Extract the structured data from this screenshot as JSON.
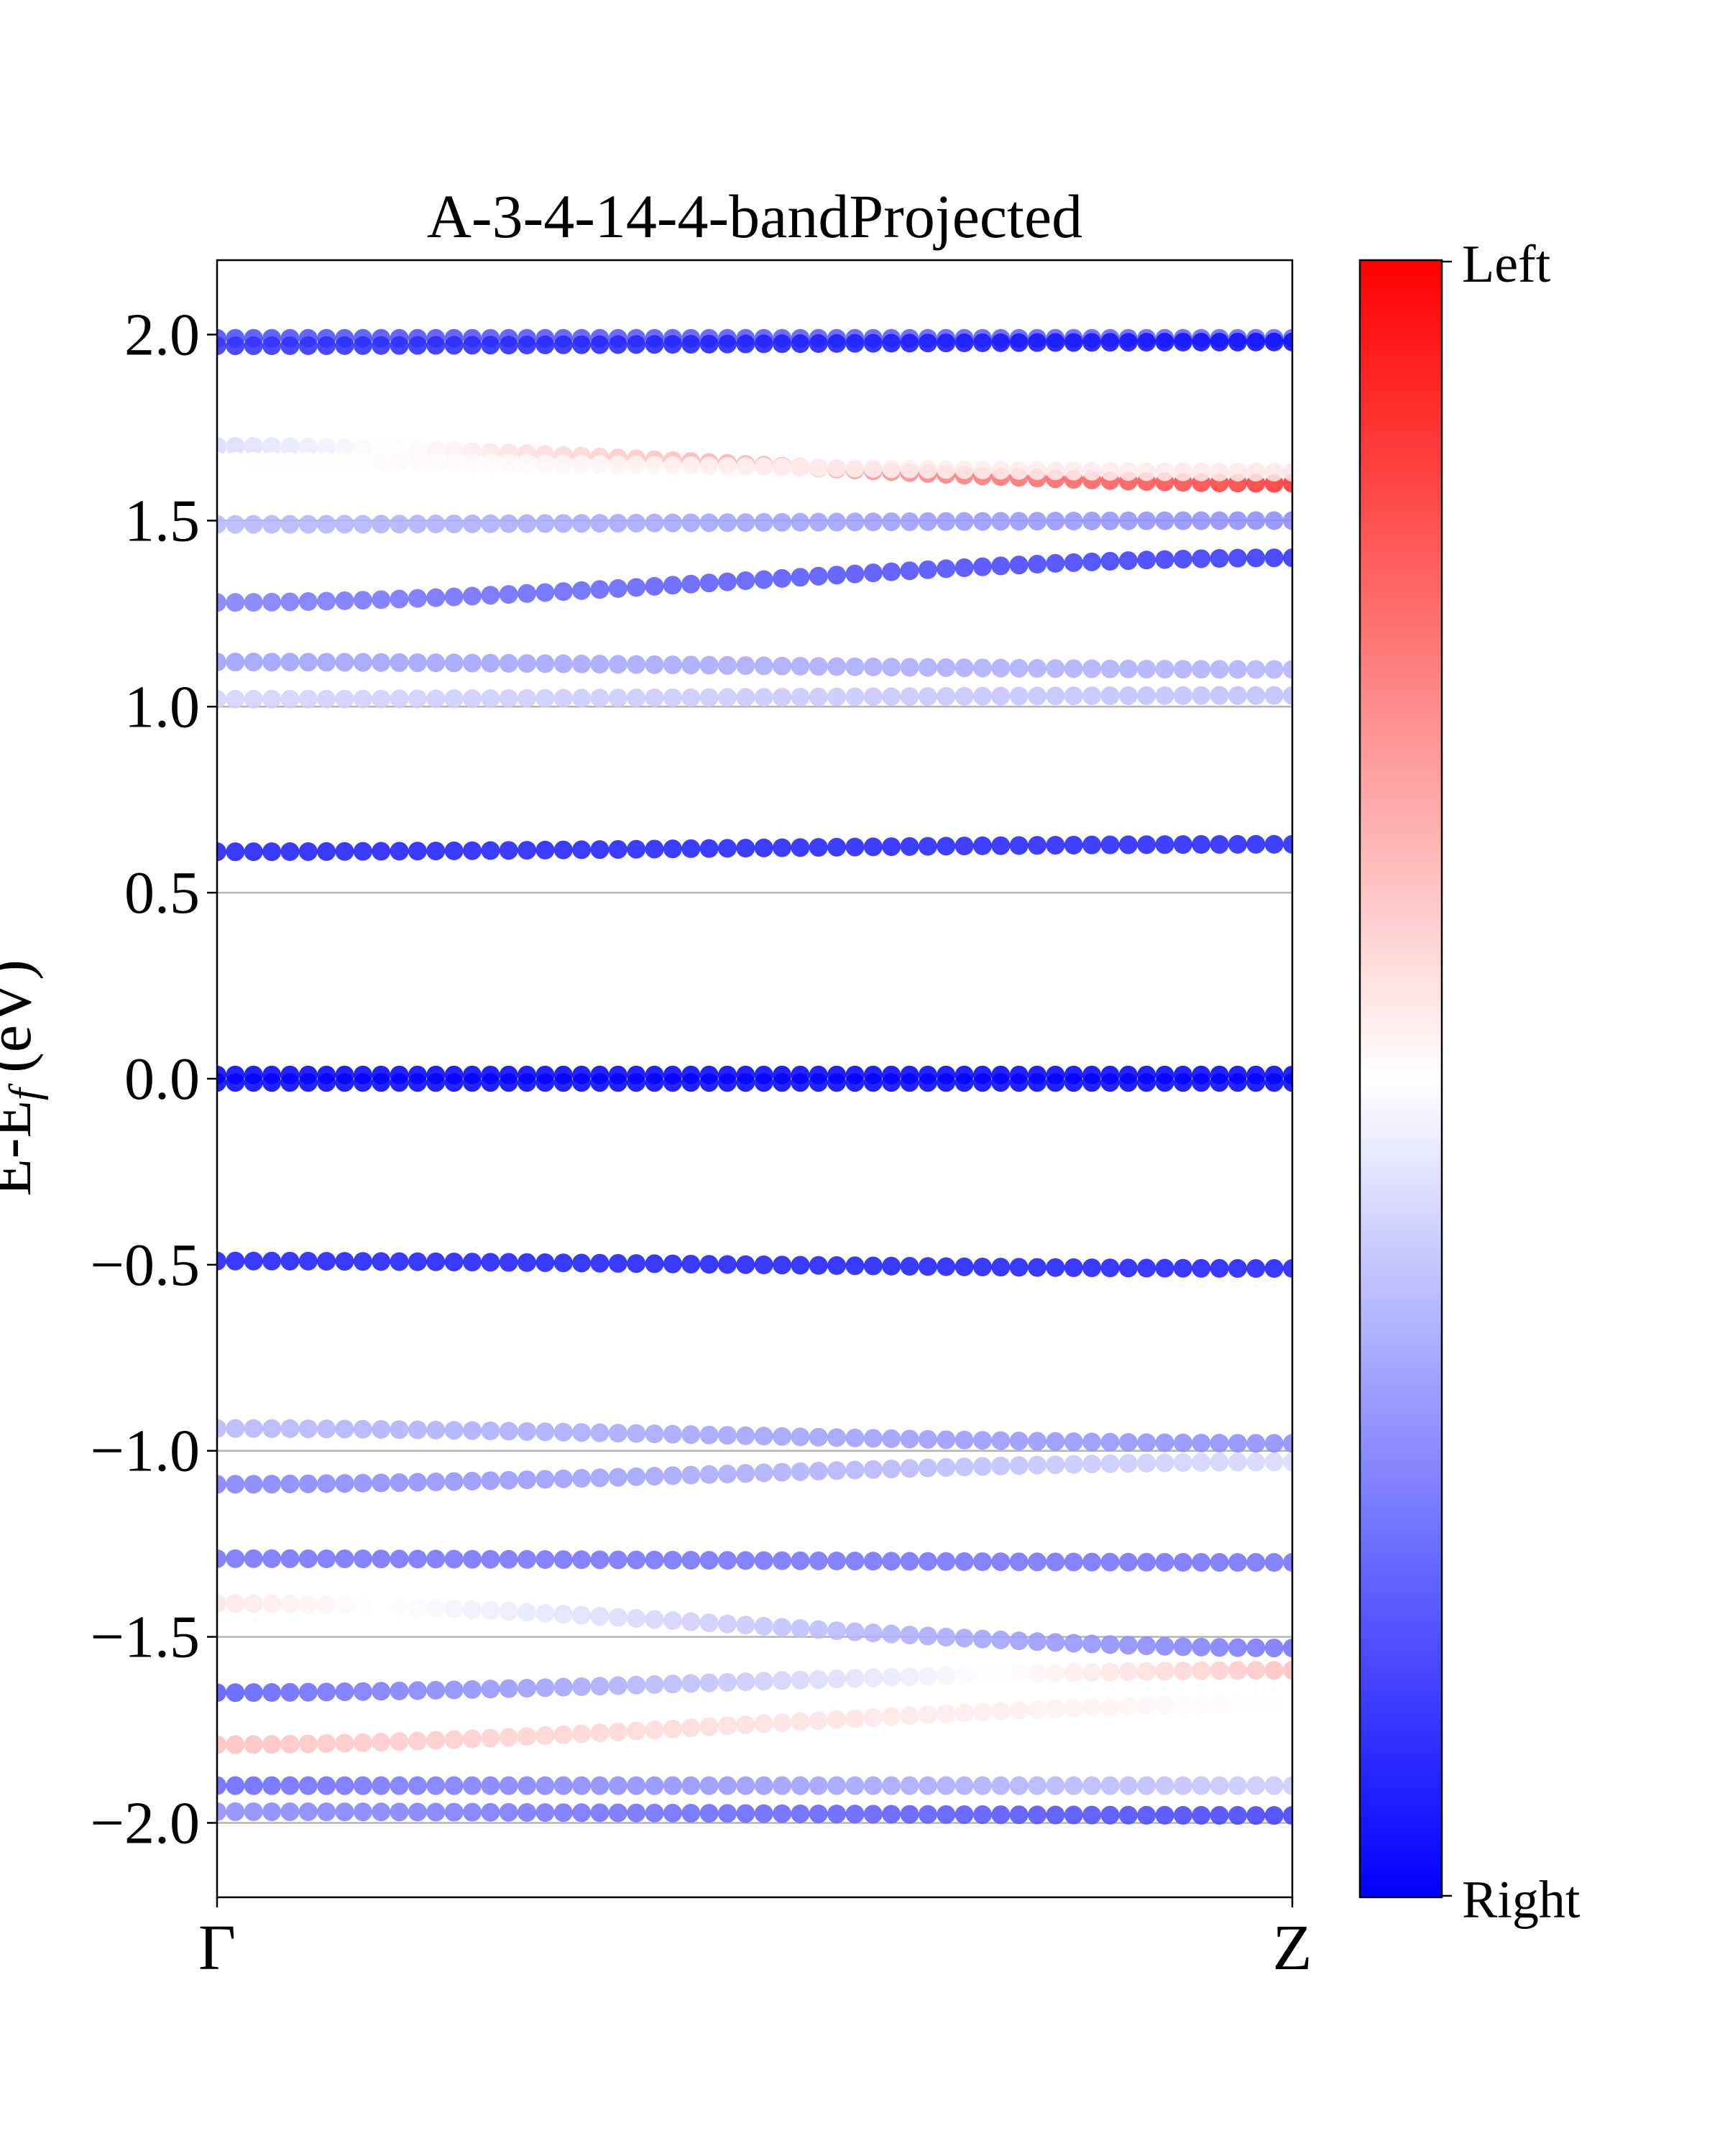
{
  "chart_data": {
    "type": "scatter",
    "title": "A-3-4-14-4-bandProjected",
    "ylabel": "E-E",
    "ylabel_sub": "f",
    "ylabel_unit": " (eV)",
    "ylim": [
      -2.2,
      2.2
    ],
    "y_ticks": [
      2.0,
      1.5,
      1.0,
      0.5,
      0.0,
      -0.5,
      -1.0,
      -1.5,
      -2.0
    ],
    "y_tick_labels": [
      "2.0",
      "1.5",
      "1.0",
      "0.5",
      "0.0",
      "−0.5",
      "−1.0",
      "−1.5",
      "−2.0"
    ],
    "reference_lines_y": [
      1.5,
      1.0,
      0.5,
      0.0,
      -1.0,
      -1.5,
      -2.0
    ],
    "x_ticks": [
      "Γ",
      "Z"
    ],
    "grid": false,
    "colorbar": {
      "top_label": "Left",
      "bottom_label": "Right",
      "top_color": "#ff0000",
      "mid_color": "#ffffff",
      "bottom_color": "#0000ff"
    },
    "bands": [
      {
        "start": 1.99,
        "end": 1.99,
        "w_start": 0.3,
        "w_end": 0.4
      },
      {
        "start": 1.97,
        "end": 1.98,
        "w_start": 0.2,
        "w_end": 0.05
      },
      {
        "start": 1.7,
        "end": 1.6,
        "w_start": 0.85,
        "w_end": 1.8
      },
      {
        "start": 1.66,
        "end": 1.63,
        "w_start": 1.0,
        "w_end": 1.1
      },
      {
        "start": 1.49,
        "end": 1.5,
        "w_start": 0.72,
        "w_end": 0.55
      },
      {
        "start": 1.28,
        "end": 1.4,
        "w_start": 0.5,
        "w_end": 0.2
      },
      {
        "start": 1.12,
        "end": 1.1,
        "w_start": 0.62,
        "w_end": 0.7
      },
      {
        "start": 1.02,
        "end": 1.03,
        "w_start": 0.82,
        "w_end": 0.75
      },
      {
        "start": 0.61,
        "end": 0.63,
        "w_start": 0.12,
        "w_end": 0.15
      },
      {
        "start": 0.01,
        "end": 0.01,
        "w_start": 0.02,
        "w_end": 0.02
      },
      {
        "start": -0.01,
        "end": -0.01,
        "w_start": 0.02,
        "w_end": 0.02
      },
      {
        "start": -0.49,
        "end": -0.51,
        "w_start": 0.12,
        "w_end": 0.12
      },
      {
        "start": -0.94,
        "end": -0.98,
        "w_start": 0.72,
        "w_end": 0.55
      },
      {
        "start": -1.09,
        "end": -1.03,
        "w_start": 0.5,
        "w_end": 0.85
      },
      {
        "start": -1.29,
        "end": -1.3,
        "w_start": 0.45,
        "w_end": 0.45
      },
      {
        "start": -1.41,
        "end": -1.53,
        "w_start": 1.1,
        "w_end": 0.45
      },
      {
        "start": -1.65,
        "end": -1.59,
        "w_start": 0.35,
        "w_end": 1.25
      },
      {
        "start": -1.79,
        "end": -1.68,
        "w_start": 1.25,
        "w_end": 1.0
      },
      {
        "start": -1.9,
        "end": -1.9,
        "w_start": 0.4,
        "w_end": 0.8
      },
      {
        "start": -1.97,
        "end": -1.98,
        "w_start": 0.55,
        "w_end": 0.25
      }
    ]
  }
}
